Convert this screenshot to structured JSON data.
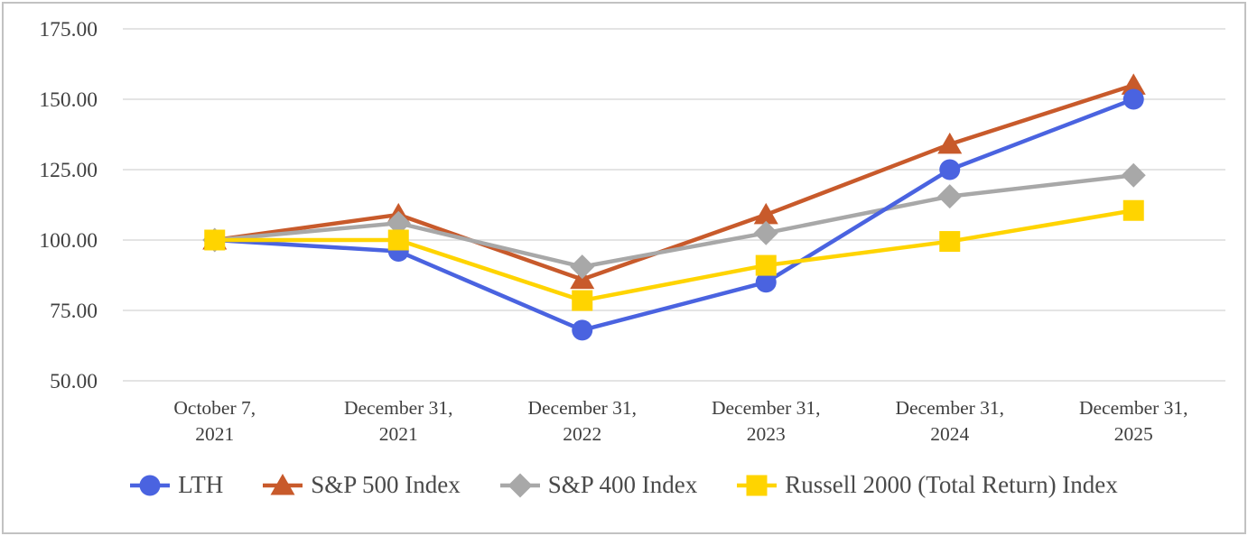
{
  "frame": {
    "border_color": "#c2c2c2",
    "background_color": "#ffffff"
  },
  "axis_style": {
    "grid_color": "#dcdcdc",
    "tick_text_color": "#3f3f3f"
  },
  "chart_data": {
    "type": "line",
    "title": "",
    "xlabel": "",
    "ylabel": "",
    "categories": [
      [
        "October 7,",
        "2021"
      ],
      [
        "December 31,",
        "2021"
      ],
      [
        "December 31,",
        "2022"
      ],
      [
        "December 31,",
        "2023"
      ],
      [
        "December 31,",
        "2024"
      ],
      [
        "December 31,",
        "2025"
      ]
    ],
    "y_tick_labels": [
      "175.00",
      "150.00",
      "125.00",
      "100.00",
      "75.00",
      "50.00"
    ],
    "y_tick_values": [
      175,
      150,
      125,
      100,
      75,
      50
    ],
    "ylim": [
      50,
      175
    ],
    "grid": true,
    "legend_position": "bottom",
    "draw_order": [
      1,
      2,
      0,
      3
    ],
    "series": [
      {
        "name": "LTH",
        "marker": "circle",
        "color": "#4a63e0",
        "values": [
          100,
          96,
          68,
          85,
          125,
          150
        ]
      },
      {
        "name": "S&P 500 Index",
        "marker": "triangle",
        "color": "#c85a2b",
        "values": [
          100,
          109,
          86,
          109,
          134,
          155
        ]
      },
      {
        "name": "S&P 400 Index",
        "marker": "diamond",
        "color": "#a8a8a8",
        "values": [
          100,
          106,
          90.5,
          102.5,
          115.5,
          123
        ]
      },
      {
        "name": "Russell 2000 (Total Return) Index",
        "marker": "square",
        "color": "#ffd400",
        "values": [
          100,
          100,
          78.5,
          91,
          99.5,
          110.5
        ]
      }
    ]
  }
}
